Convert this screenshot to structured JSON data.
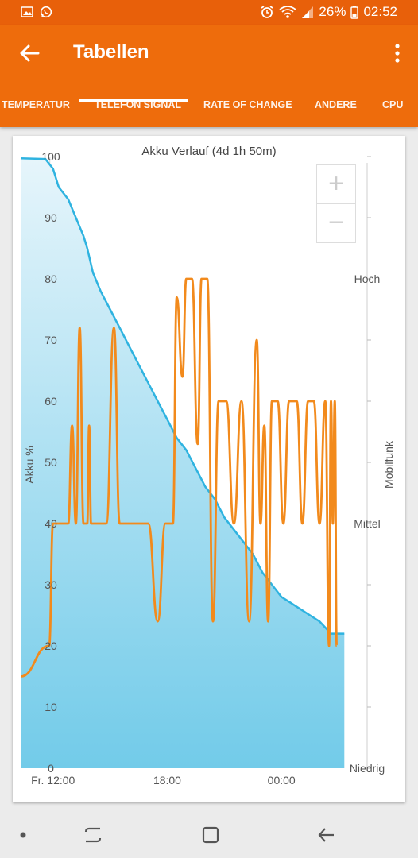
{
  "status": {
    "battery": "26%",
    "time": "02:52"
  },
  "appbar": {
    "title": "Tabellen"
  },
  "tabs": [
    "TEMPERATUR",
    "TELEFON SIGNAL",
    "RATE OF CHANGE",
    "ANDERE",
    "CPU"
  ],
  "active_tab": "TELEFON SIGNAL",
  "colors": {
    "appbar": "#ee6c0c",
    "battery_line": "#2fb3e0",
    "signal_line": "#f28a1c"
  },
  "chart_data": {
    "type": "line",
    "title": "Akku Verlauf (4d 1h 50m)",
    "ylabel": "Akku %",
    "y2label": "Mobilfunk",
    "ylim": [
      0,
      100
    ],
    "y_ticks": [
      "0",
      "10",
      "20",
      "30",
      "40",
      "50",
      "60",
      "70",
      "80",
      "90",
      "100"
    ],
    "y2_ticks": [
      "Niedrig",
      "Mittel",
      "Hoch"
    ],
    "x_ticks": [
      "Fr. 12:00",
      "18:00",
      "00:00"
    ],
    "x_tick_hours": [
      0,
      6,
      12
    ],
    "xlim": [
      -1.7,
      16.5
    ],
    "series": [
      {
        "name": "Akku %",
        "x": [
          -1.7,
          -0.4,
          0,
          0.3,
          0.8,
          1.2,
          1.6,
          1.8,
          2.1,
          2.5,
          3.0,
          3.5,
          4.0,
          4.5,
          5.0,
          5.5,
          6.0,
          6.5,
          7.0,
          7.5,
          8.0,
          8.5,
          9.0,
          9.5,
          10.0,
          10.5,
          11.0,
          11.5,
          12.0,
          12.5,
          13.0,
          13.5,
          14.0,
          14.3,
          14.6,
          14.9,
          15.3
        ],
        "values": [
          99.7,
          99.6,
          98,
          95,
          93,
          90,
          87,
          85,
          81,
          78,
          75,
          72,
          69,
          66,
          63,
          60,
          57,
          54,
          52,
          49,
          46,
          44,
          41,
          39,
          37,
          35,
          32,
          30,
          28,
          27,
          26,
          25,
          24,
          23,
          22,
          22,
          22
        ]
      },
      {
        "name": "Mobilfunk",
        "x": [
          -1.7,
          -0.2,
          0,
          0.2,
          0.6,
          0.8,
          1.0,
          1.2,
          1.4,
          1.6,
          1.8,
          1.9,
          2.0,
          2.1,
          2.3,
          2.5,
          2.8,
          3.2,
          3.5,
          3.8,
          4.1,
          4.5,
          5.0,
          5.5,
          5.9,
          6.1,
          6.3,
          6.5,
          6.8,
          7.0,
          7.3,
          7.6,
          7.8,
          8.1,
          8.4,
          8.7,
          9.1,
          9.5,
          9.9,
          10.3,
          10.7,
          10.9,
          11.1,
          11.3,
          11.5,
          11.8,
          12.1,
          12.4,
          12.8,
          13.1,
          13.4,
          13.7,
          14.0,
          14.3,
          14.5,
          14.6,
          14.7,
          14.8,
          14.9
        ],
        "values": [
          15,
          20,
          40,
          40,
          40,
          40,
          56,
          40,
          72,
          40,
          40,
          56,
          40,
          40,
          40,
          40,
          40,
          72,
          40,
          40,
          40,
          40,
          40,
          24,
          40,
          40,
          40,
          77,
          64,
          80,
          80,
          53,
          80,
          80,
          24,
          60,
          60,
          40,
          60,
          24,
          70,
          40,
          56,
          24,
          60,
          60,
          40,
          60,
          60,
          40,
          60,
          60,
          40,
          60,
          20,
          60,
          40,
          60,
          20
        ]
      }
    ]
  }
}
